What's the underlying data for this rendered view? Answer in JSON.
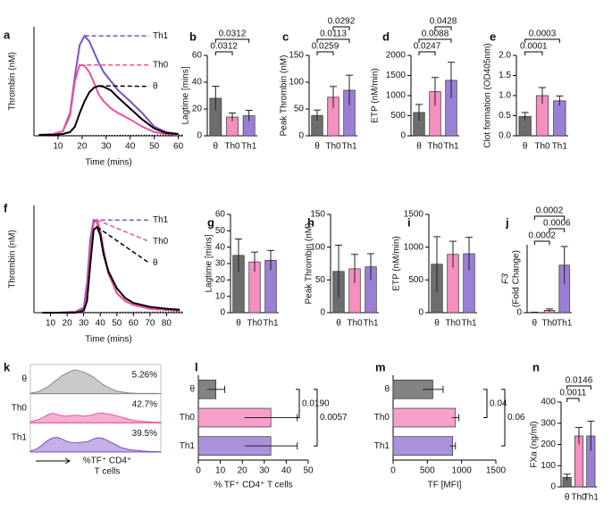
{
  "chart_data": [
    {
      "panel": "a",
      "type": "line",
      "ylabel": "Thrombin (nM)",
      "xlabel": "Time (mins)",
      "xlim": [
        0,
        62
      ],
      "ylim": [
        0,
        120
      ],
      "xticks": [
        10,
        20,
        30,
        40,
        50,
        60
      ],
      "x": [
        2,
        8,
        12,
        15,
        17,
        19,
        21,
        23,
        25,
        27,
        29,
        32,
        35,
        40,
        45,
        50,
        55,
        60
      ],
      "series": [
        {
          "name": "Th1",
          "color": "#7b4fc9",
          "values": [
            1,
            2,
            5,
            25,
            65,
            100,
            110,
            104,
            92,
            80,
            70,
            60,
            50,
            38,
            25,
            10,
            4,
            2
          ]
        },
        {
          "name": "Th0",
          "color": "#f0509a",
          "values": [
            1,
            2,
            5,
            22,
            60,
            78,
            77,
            70,
            58,
            45,
            38,
            30,
            25,
            18,
            10,
            4,
            2,
            1
          ]
        },
        {
          "name": "θ",
          "color": "#000000",
          "values": [
            1,
            1,
            2,
            4,
            10,
            25,
            38,
            48,
            53,
            55,
            54,
            50,
            42,
            30,
            18,
            8,
            3,
            2
          ]
        }
      ]
    },
    {
      "panel": "b",
      "type": "bar",
      "ylabel": "Lagtime [mins]",
      "categories": [
        "θ",
        "Th0",
        "Th1"
      ],
      "values": [
        28,
        14,
        15
      ],
      "errors": [
        9,
        3,
        4
      ],
      "colors": [
        "#6d6d6d",
        "#f48fc0",
        "#9b7fd4"
      ],
      "ylim": [
        0,
        60
      ],
      "yticks": [
        0,
        20,
        40,
        60
      ],
      "comparisons": [
        {
          "pair": [
            0,
            1
          ],
          "label": "0.0312"
        },
        {
          "pair": [
            0,
            2
          ],
          "label": "0.0312"
        }
      ]
    },
    {
      "panel": "c",
      "type": "bar",
      "ylabel": "Peak Thrombin (nM)",
      "categories": [
        "θ",
        "Th0",
        "Th1"
      ],
      "values": [
        38,
        72,
        85
      ],
      "errors": [
        10,
        20,
        28
      ],
      "colors": [
        "#6d6d6d",
        "#f48fc0",
        "#9b7fd4"
      ],
      "ylim": [
        0,
        150
      ],
      "yticks": [
        0,
        50,
        100,
        150
      ],
      "comparisons": [
        {
          "pair": [
            0,
            1
          ],
          "label": "0.0259"
        },
        {
          "pair": [
            0,
            2
          ],
          "label": "0.0113"
        },
        {
          "pair": [
            1,
            2
          ],
          "label": "0.0292"
        }
      ]
    },
    {
      "panel": "d",
      "type": "bar",
      "ylabel": "ETP (nM/min)",
      "categories": [
        "θ",
        "Th0",
        "Th1"
      ],
      "values": [
        580,
        1100,
        1380
      ],
      "errors": [
        200,
        350,
        450
      ],
      "colors": [
        "#6d6d6d",
        "#f48fc0",
        "#9b7fd4"
      ],
      "ylim": [
        0,
        2000
      ],
      "yticks": [
        0,
        500,
        1000,
        1500,
        2000
      ],
      "comparisons": [
        {
          "pair": [
            0,
            1
          ],
          "label": "0.0247"
        },
        {
          "pair": [
            0,
            2
          ],
          "label": "0.0088"
        },
        {
          "pair": [
            1,
            2
          ],
          "label": "0.0428"
        }
      ]
    },
    {
      "panel": "e",
      "type": "bar",
      "ylabel": "Clot formation (OD405nm)",
      "categories": [
        "θ",
        "Th0",
        "Th1"
      ],
      "values": [
        0.48,
        1.0,
        0.87
      ],
      "errors": [
        0.1,
        0.2,
        0.12
      ],
      "colors": [
        "#6d6d6d",
        "#f48fc0",
        "#9b7fd4"
      ],
      "ylim": [
        0,
        2.0
      ],
      "yticks": [
        {
          "value": 0,
          "label": "0.0"
        },
        {
          "value": 0.5,
          "label": "0.5"
        },
        {
          "value": 1,
          "label": "1.0"
        },
        {
          "value": 1.5,
          "label": "1.5"
        },
        {
          "value": 2,
          "label": "2.0"
        }
      ],
      "comparisons": [
        {
          "pair": [
            0,
            1
          ],
          "label": "0.0001"
        },
        {
          "pair": [
            0,
            2
          ],
          "label": "0.0003"
        }
      ]
    },
    {
      "panel": "f",
      "type": "line",
      "ylabel": "Thrombin (nM)",
      "xlabel": "Time (mins)",
      "xlim": [
        0,
        90
      ],
      "ylim": [
        0,
        110
      ],
      "xticks": [
        10,
        20,
        30,
        40,
        50,
        60,
        70,
        80
      ],
      "x": [
        5,
        15,
        25,
        30,
        32,
        34,
        36,
        38,
        40,
        42,
        45,
        50,
        55,
        60,
        70,
        80,
        88
      ],
      "series": [
        {
          "name": "Th1",
          "color": "#7b4fc9",
          "values": [
            0,
            0,
            1,
            5,
            30,
            75,
            95,
            93,
            80,
            60,
            40,
            20,
            12,
            8,
            4,
            3,
            2
          ]
        },
        {
          "name": "Th0",
          "color": "#f0509a",
          "values": [
            0,
            0,
            1,
            3,
            20,
            65,
            92,
            95,
            85,
            65,
            40,
            20,
            12,
            8,
            4,
            3,
            2
          ]
        },
        {
          "name": "θ",
          "color": "#000000",
          "values": [
            0,
            0,
            0,
            2,
            12,
            50,
            85,
            88,
            80,
            60,
            42,
            25,
            15,
            10,
            6,
            4,
            3
          ]
        }
      ]
    },
    {
      "panel": "g",
      "type": "bar",
      "ylabel": "Lagtime [mins]",
      "categories": [
        "θ",
        "Th0",
        "Th1"
      ],
      "values": [
        35,
        31,
        32
      ],
      "errors": [
        10,
        6,
        6
      ],
      "colors": [
        "#6d6d6d",
        "#f48fc0",
        "#9b7fd4"
      ],
      "ylim": [
        0,
        60
      ],
      "yticks": [
        0,
        10,
        20,
        30,
        40,
        50,
        60
      ]
    },
    {
      "panel": "h",
      "type": "bar",
      "ylabel": "Peak Thrombin (nM)",
      "categories": [
        "θ",
        "Th0",
        "Th1"
      ],
      "values": [
        63,
        67,
        70
      ],
      "errors": [
        40,
        22,
        20
      ],
      "colors": [
        "#6d6d6d",
        "#f48fc0",
        "#9b7fd4"
      ],
      "ylim": [
        0,
        150
      ],
      "yticks": [
        0,
        50,
        100,
        150
      ]
    },
    {
      "panel": "i",
      "type": "bar",
      "ylabel": "ETP (nM/min)",
      "categories": [
        "θ",
        "Th0",
        "Th1"
      ],
      "values": [
        740,
        890,
        900
      ],
      "errors": [
        420,
        200,
        250
      ],
      "colors": [
        "#6d6d6d",
        "#f48fc0",
        "#9b7fd4"
      ],
      "ylim": [
        0,
        1500
      ],
      "yticks": [
        0,
        500,
        1000,
        1500
      ]
    },
    {
      "panel": "j",
      "type": "bar",
      "ylabel": [
        "F3",
        "(Fold Change)"
      ],
      "categories": [
        "θ",
        "Th0",
        "Th1"
      ],
      "values": [
        1,
        7,
        140
      ],
      "errors": [
        0.5,
        4,
        55
      ],
      "colors": [
        "#6d6d6d",
        "#f48fc0",
        "#9b7fd4"
      ],
      "ylim": [
        0,
        200
      ],
      "yticks": [
        0
      ],
      "comparisons": [
        {
          "pair": [
            0,
            1
          ],
          "label": "0.0002"
        },
        {
          "pair": [
            1,
            2
          ],
          "label": "0.0006"
        },
        {
          "pair": [
            0,
            2
          ],
          "label": "0.0002"
        }
      ]
    },
    {
      "panel": "k",
      "type": "ridge",
      "xlabel": [
        "%TF⁺ CD4⁺",
        "T cells"
      ],
      "ylim": [
        0,
        1
      ],
      "series": [
        {
          "name": "θ",
          "color": "#8a8a8a",
          "annotation": "5.26%",
          "values": [
            0.02,
            0.05,
            0.1,
            0.2,
            0.3,
            0.45,
            0.6,
            0.75,
            0.85,
            0.95,
            1,
            0.95,
            0.9,
            0.8,
            0.7,
            0.55,
            0.4,
            0.3,
            0.2,
            0.12,
            0.08,
            0.05,
            0.03,
            0.02,
            0.01,
            0.01,
            0.01,
            0.01,
            0.01,
            0
          ]
        },
        {
          "name": "Th0",
          "color": "#f0509a",
          "annotation": "42.7%",
          "values": [
            0.05,
            0.1,
            0.15,
            0.25,
            0.35,
            0.4,
            0.35,
            0.3,
            0.28,
            0.3,
            0.32,
            0.3,
            0.28,
            0.3,
            0.35,
            0.4,
            0.42,
            0.38,
            0.35,
            0.3,
            0.25,
            0.2,
            0.15,
            0.1,
            0.08,
            0.06,
            0.05,
            0.03,
            0.02,
            0.02
          ]
        },
        {
          "name": "Th1",
          "color": "#7b4fc9",
          "annotation": "39.5%",
          "values": [
            0.05,
            0.1,
            0.2,
            0.35,
            0.5,
            0.6,
            0.62,
            0.55,
            0.45,
            0.4,
            0.38,
            0.4,
            0.42,
            0.45,
            0.55,
            0.6,
            0.58,
            0.5,
            0.4,
            0.3,
            0.2,
            0.15,
            0.1,
            0.08,
            0.06,
            0.04,
            0.03,
            0.02,
            0.02,
            0.01
          ]
        }
      ]
    },
    {
      "panel": "l",
      "type": "hbar",
      "xlabel": "% TF⁺ CD4⁺ T cells",
      "categories": [
        "θ",
        "Th0",
        "Th1"
      ],
      "values": [
        8,
        33,
        33
      ],
      "errors": [
        4,
        12,
        12
      ],
      "colors": [
        "#6d6d6d",
        "#f48fc0",
        "#9b7fd4"
      ],
      "xlim": [
        0,
        50
      ],
      "xticks": [
        0,
        10,
        20,
        30,
        40,
        50
      ],
      "comparisons": [
        {
          "pair": [
            0,
            1
          ],
          "label": "0.0190"
        },
        {
          "pair": [
            0,
            2
          ],
          "label": "0.0057"
        }
      ]
    },
    {
      "panel": "m",
      "type": "hbar",
      "xlabel": "TF [MFI]",
      "categories": [
        "θ",
        "Th0",
        "Th1"
      ],
      "values": [
        580,
        910,
        870
      ],
      "errors": [
        150,
        50,
        40
      ],
      "colors": [
        "#6d6d6d",
        "#f48fc0",
        "#9b7fd4"
      ],
      "xlim": [
        0,
        1500
      ],
      "xticks": [
        0,
        500,
        1000,
        1500
      ],
      "comparisons": [
        {
          "pair": [
            0,
            1
          ],
          "label": "0.04"
        },
        {
          "pair": [
            0,
            2
          ],
          "label": "0.06"
        }
      ]
    },
    {
      "panel": "n",
      "type": "bar",
      "ylabel": "FXa (ng/ml)",
      "categories": [
        "θ",
        "Th0",
        "Th1"
      ],
      "values": [
        45,
        240,
        240
      ],
      "errors": [
        15,
        40,
        70
      ],
      "colors": [
        "#6d6d6d",
        "#f48fc0",
        "#9b7fd4"
      ],
      "ylim": [
        0,
        400
      ],
      "yticks": [
        0,
        100,
        200,
        300,
        400
      ],
      "comparisons": [
        {
          "pair": [
            0,
            1
          ],
          "label": "0.0011"
        },
        {
          "pair": [
            0,
            2
          ],
          "label": "0.0146"
        }
      ]
    }
  ]
}
